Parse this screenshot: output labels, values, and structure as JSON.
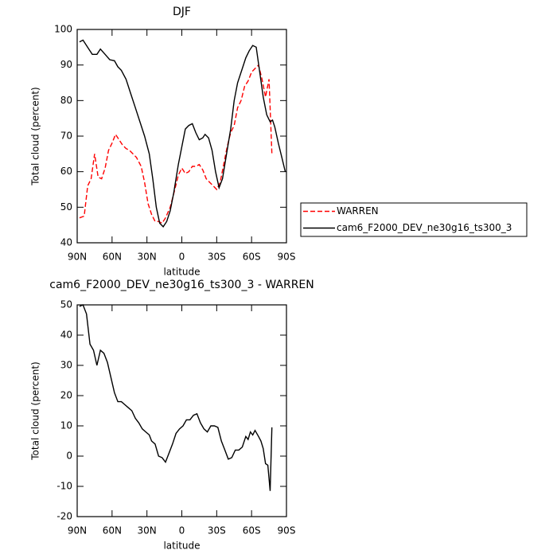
{
  "chart_data": [
    {
      "type": "line",
      "title": "DJF",
      "xlabel": "latitude",
      "ylabel": "Total cloud (percent)",
      "xlim": [
        90,
        -90
      ],
      "xticks": [
        {
          "value": 90,
          "label": "90N"
        },
        {
          "value": 60,
          "label": "60N"
        },
        {
          "value": 30,
          "label": "30N"
        },
        0,
        {
          "value": -30,
          "label": "30S"
        },
        {
          "value": -60,
          "label": "60S"
        },
        {
          "value": -90,
          "label": "90S"
        }
      ],
      "ylim": [
        40,
        100
      ],
      "yticks": [
        40,
        50,
        60,
        70,
        80,
        90,
        100
      ],
      "legend": "right",
      "series": [
        {
          "name": "WARREN",
          "color": "#ff0000",
          "dashed": true,
          "x": [
            88,
            84,
            81,
            78,
            75,
            72,
            69,
            66,
            63,
            60,
            57,
            54,
            51,
            48,
            45,
            42,
            39,
            35,
            32,
            29,
            26,
            23,
            20,
            17,
            14,
            10,
            6,
            3,
            0,
            -3,
            -6,
            -9,
            -12,
            -15,
            -18,
            -21,
            -24,
            -27,
            -30,
            -33,
            -36,
            -39,
            -42,
            -45,
            -48,
            -51,
            -54,
            -57,
            -60,
            -63,
            -66,
            -69,
            -72,
            -75,
            -77.5
          ],
          "values": [
            47,
            47.5,
            56,
            58,
            65,
            58.5,
            58,
            61,
            66,
            68,
            70.5,
            69,
            67.5,
            66.5,
            66,
            65,
            64,
            61.5,
            57,
            51,
            48,
            46,
            46,
            45.5,
            47,
            50,
            55,
            59,
            61,
            59.5,
            60,
            61.5,
            61.5,
            62,
            60.5,
            58,
            57,
            56,
            55,
            57,
            62,
            67,
            71,
            73,
            78,
            80,
            84,
            85.5,
            88,
            89,
            90,
            86,
            81,
            86,
            65
          ]
        },
        {
          "name": "cam6_F2000_DEV_ne30g16_ts300_3",
          "color": "#000000",
          "dashed": false,
          "x": [
            88,
            85,
            80,
            77,
            73,
            70,
            66,
            62,
            58,
            55,
            52,
            48,
            44,
            40,
            36,
            32,
            28,
            25,
            22,
            19,
            16,
            13,
            10,
            7,
            3,
            0,
            -3,
            -6,
            -9,
            -12,
            -15,
            -18,
            -20,
            -23,
            -26,
            -29,
            -32,
            -35,
            -38,
            -42,
            -45,
            -48,
            -52,
            -55,
            -58,
            -61,
            -64,
            -67,
            -70,
            -73,
            -76,
            -78,
            -80,
            -83,
            -86,
            -89
          ],
          "values": [
            96.5,
            97,
            94.5,
            93,
            93,
            94.5,
            93,
            91.5,
            91.2,
            89.5,
            88.5,
            86,
            82,
            78,
            74,
            70,
            65,
            58,
            50,
            45.5,
            44.5,
            46,
            49,
            54,
            62,
            67,
            72,
            73,
            73.5,
            71,
            69,
            69.5,
            70.5,
            69.5,
            66,
            60,
            55.5,
            58,
            64,
            72,
            80,
            85,
            89,
            92,
            94,
            95.5,
            95,
            88,
            81,
            76,
            74,
            74.5,
            72.5,
            68,
            64,
            60
          ]
        }
      ]
    },
    {
      "type": "line",
      "title": "cam6_F2000_DEV_ne30g16_ts300_3 - WARREN",
      "xlabel": "latitude",
      "ylabel": "Total cloud (percent)",
      "xlim": [
        90,
        -90
      ],
      "xticks": [
        {
          "value": 90,
          "label": "90N"
        },
        {
          "value": 60,
          "label": "60N"
        },
        {
          "value": 30,
          "label": "30N"
        },
        0,
        {
          "value": -30,
          "label": "30S"
        },
        {
          "value": -60,
          "label": "60S"
        },
        {
          "value": -90,
          "label": "90S"
        }
      ],
      "ylim": [
        -20,
        50
      ],
      "yticks": [
        -20,
        -10,
        0,
        10,
        20,
        30,
        40,
        50
      ],
      "series": [
        {
          "color": "#000000",
          "dashed": false,
          "x": [
            88,
            85,
            82,
            79,
            76,
            73,
            70,
            67,
            64,
            61,
            58,
            55,
            52,
            49,
            46,
            43,
            40,
            37,
            34,
            31,
            28,
            26,
            23,
            20,
            17,
            14,
            11,
            8,
            5,
            2,
            -1,
            -4,
            -7,
            -10,
            -13,
            -16,
            -19,
            -22,
            -25,
            -28,
            -31,
            -34,
            -37,
            -40,
            -43,
            -46,
            -49,
            -52,
            -55,
            -57,
            -59,
            -61,
            -63,
            -66,
            -68,
            -70,
            -72,
            -74,
            -76,
            -77.5
          ],
          "values": [
            49.5,
            50,
            47,
            37,
            35,
            30,
            35,
            34,
            31,
            26,
            21,
            18,
            18,
            17,
            16,
            15,
            12.5,
            11,
            9,
            8,
            7,
            5,
            4,
            0,
            -0.5,
            -2,
            1,
            4,
            7.5,
            9,
            10,
            12,
            12,
            13.5,
            14,
            11,
            9,
            8,
            10,
            10,
            9.5,
            5,
            2,
            -1,
            -0.5,
            2,
            2,
            3,
            6.5,
            5.5,
            8,
            7,
            8.5,
            6.5,
            5,
            2.5,
            -2.5,
            -3,
            -11.5,
            9.5
          ]
        }
      ]
    }
  ]
}
